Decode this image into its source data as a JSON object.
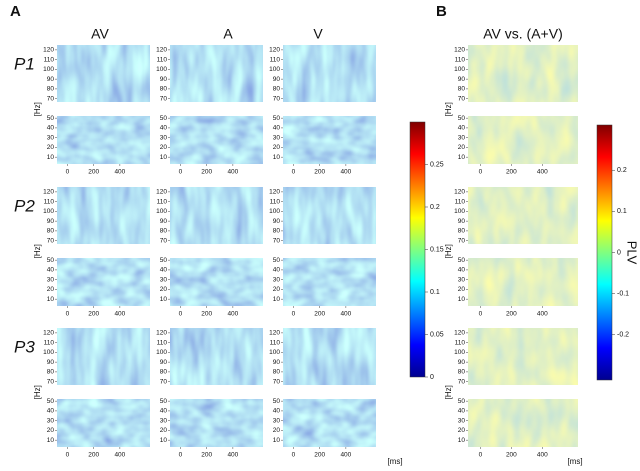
{
  "panel_labels": [
    "A",
    "B"
  ],
  "columns": [
    "AV",
    "A",
    "V",
    "AV vs. (A+V)"
  ],
  "rows": [
    "P1",
    "P2",
    "P3"
  ],
  "y_axis": {
    "label": "[Hz]",
    "ylim": [
      3,
      125
    ],
    "yticks": [
      10,
      20,
      30,
      40,
      50,
      70,
      80,
      90,
      100,
      110,
      120
    ]
  },
  "x_axis": {
    "label": "[ms]",
    "xlim": [
      -80,
      630
    ],
    "xticks": [
      0,
      200,
      400
    ]
  },
  "colorbar_a": {
    "ylim": [
      0,
      0.3
    ],
    "yticks": [
      0,
      0.05,
      0.1,
      0.15,
      0.2,
      0.25
    ]
  },
  "colorbar_b": {
    "label": "PLV",
    "ylim": [
      -0.31,
      0.31
    ],
    "yticks": [
      -0.2,
      -0.1,
      0,
      0.1,
      0.2
    ]
  }
}
